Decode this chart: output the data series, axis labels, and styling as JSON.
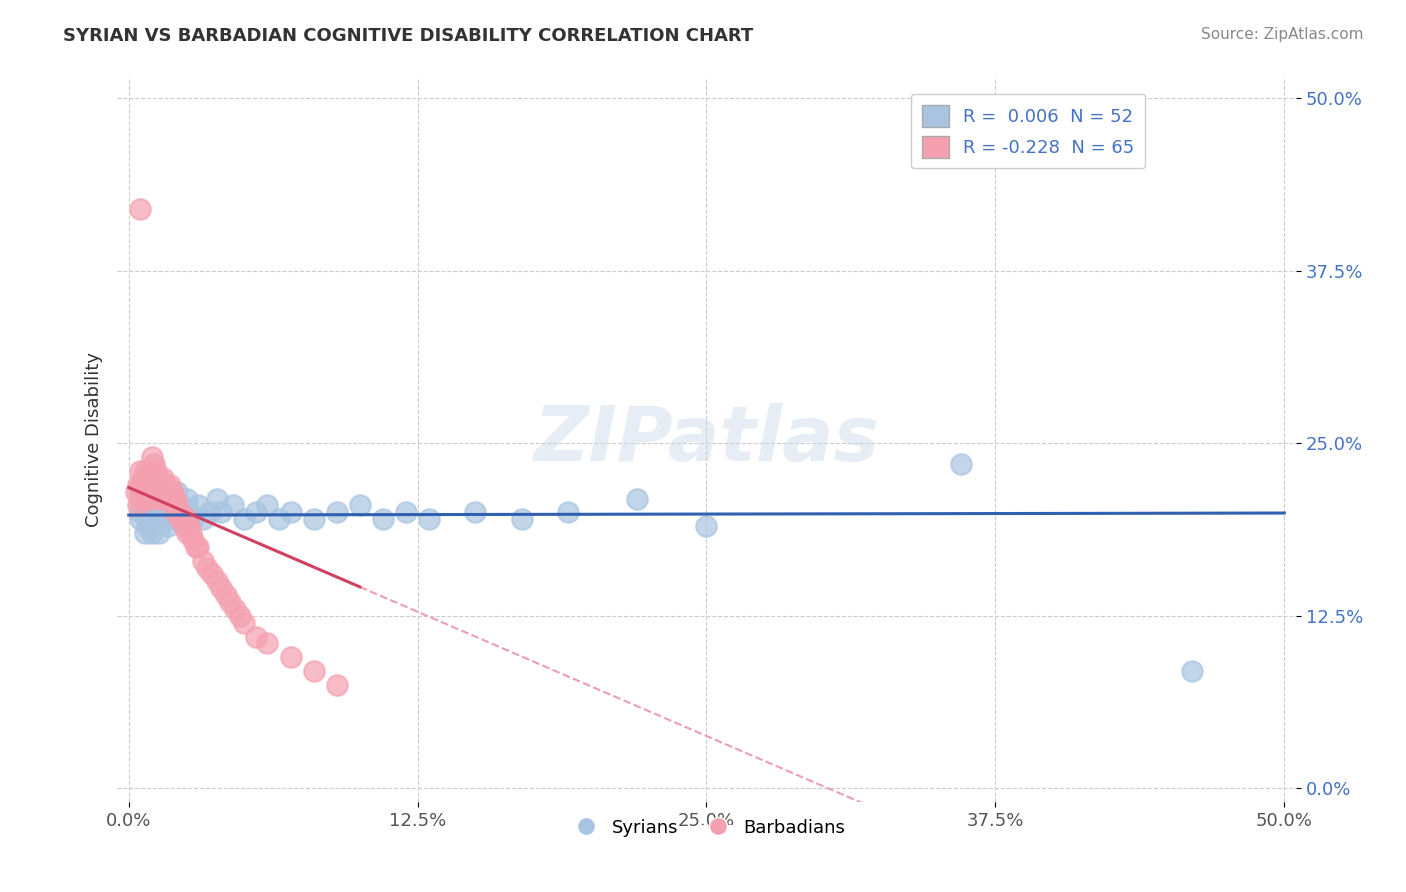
{
  "title": "SYRIAN VS BARBADIAN COGNITIVE DISABILITY CORRELATION CHART",
  "source": "Source: ZipAtlas.com",
  "xlabel_ticks": [
    "0.0%",
    "12.5%",
    "25.0%",
    "37.5%",
    "50.0%"
  ],
  "ylabel_ticks": [
    "0.0%",
    "12.5%",
    "25.0%",
    "37.5%",
    "50.0%"
  ],
  "xlim": [
    -0.005,
    0.505
  ],
  "ylim": [
    -0.01,
    0.515
  ],
  "legend_r_syrian": "0.006",
  "legend_n_syrian": "52",
  "legend_r_barbadian": "-0.228",
  "legend_n_barbadian": "65",
  "syrian_color": "#a8c4e0",
  "barbadian_color": "#f4a0b0",
  "regression_syrian_color": "#3060b0",
  "regression_barbadian_color": "#d04060",
  "regression_barbadian_dashed_color": "#e8a0b0",
  "watermark": "ZIPatlas",
  "syrians_x": [
    0.005,
    0.005,
    0.007,
    0.008,
    0.008,
    0.009,
    0.009,
    0.01,
    0.01,
    0.01,
    0.011,
    0.012,
    0.012,
    0.013,
    0.013,
    0.015,
    0.015,
    0.016,
    0.017,
    0.018,
    0.018,
    0.02,
    0.021,
    0.022,
    0.023,
    0.025,
    0.026,
    0.028,
    0.03,
    0.032,
    0.035,
    0.038,
    0.04,
    0.045,
    0.05,
    0.055,
    0.06,
    0.065,
    0.07,
    0.08,
    0.09,
    0.1,
    0.11,
    0.12,
    0.13,
    0.15,
    0.17,
    0.19,
    0.22,
    0.25,
    0.36,
    0.46
  ],
  "syrians_y": [
    0.2,
    0.195,
    0.185,
    0.21,
    0.19,
    0.205,
    0.195,
    0.215,
    0.2,
    0.185,
    0.21,
    0.22,
    0.195,
    0.2,
    0.185,
    0.215,
    0.195,
    0.205,
    0.19,
    0.21,
    0.195,
    0.2,
    0.215,
    0.205,
    0.195,
    0.21,
    0.2,
    0.195,
    0.205,
    0.195,
    0.2,
    0.21,
    0.2,
    0.205,
    0.195,
    0.2,
    0.205,
    0.195,
    0.2,
    0.195,
    0.2,
    0.205,
    0.195,
    0.2,
    0.195,
    0.2,
    0.195,
    0.2,
    0.21,
    0.19,
    0.235,
    0.085
  ],
  "barbadians_x": [
    0.003,
    0.004,
    0.004,
    0.005,
    0.005,
    0.005,
    0.006,
    0.006,
    0.007,
    0.007,
    0.007,
    0.008,
    0.008,
    0.009,
    0.009,
    0.01,
    0.01,
    0.01,
    0.01,
    0.011,
    0.011,
    0.012,
    0.012,
    0.013,
    0.013,
    0.014,
    0.014,
    0.015,
    0.015,
    0.016,
    0.016,
    0.017,
    0.018,
    0.018,
    0.019,
    0.02,
    0.02,
    0.021,
    0.022,
    0.022,
    0.023,
    0.024,
    0.025,
    0.025,
    0.026,
    0.027,
    0.028,
    0.029,
    0.03,
    0.032,
    0.034,
    0.036,
    0.038,
    0.04,
    0.042,
    0.044,
    0.046,
    0.048,
    0.05,
    0.055,
    0.06,
    0.07,
    0.08,
    0.09,
    0.005
  ],
  "barbadians_y": [
    0.215,
    0.22,
    0.205,
    0.23,
    0.22,
    0.21,
    0.225,
    0.215,
    0.23,
    0.22,
    0.21,
    0.225,
    0.215,
    0.23,
    0.22,
    0.24,
    0.23,
    0.22,
    0.21,
    0.235,
    0.225,
    0.23,
    0.22,
    0.225,
    0.215,
    0.22,
    0.21,
    0.225,
    0.215,
    0.22,
    0.21,
    0.215,
    0.22,
    0.21,
    0.215,
    0.21,
    0.2,
    0.205,
    0.2,
    0.195,
    0.195,
    0.19,
    0.195,
    0.185,
    0.19,
    0.185,
    0.18,
    0.175,
    0.175,
    0.165,
    0.16,
    0.155,
    0.15,
    0.145,
    0.14,
    0.135,
    0.13,
    0.125,
    0.12,
    0.11,
    0.105,
    0.095,
    0.085,
    0.075,
    0.42
  ]
}
